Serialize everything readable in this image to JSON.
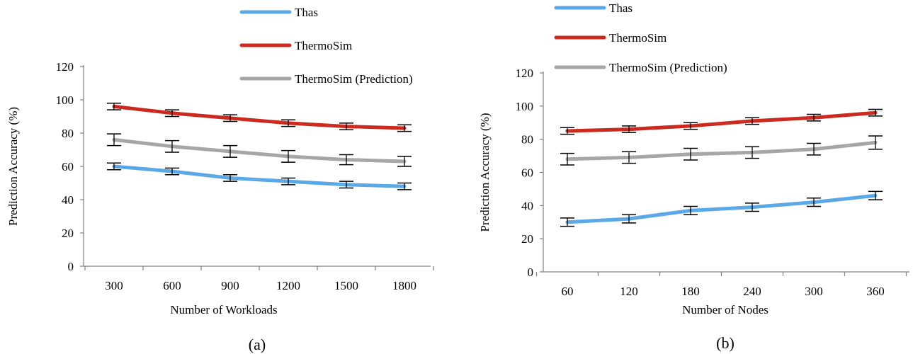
{
  "chart_data": [
    {
      "type": "line",
      "title": "",
      "panel_label": "(a)",
      "xlabel": "Number of Workloads",
      "ylabel": "Prediction Accuracy (%)",
      "categories": [
        "300",
        "600",
        "900",
        "1200",
        "1500",
        "1800"
      ],
      "ylim": [
        0,
        120
      ],
      "yticks": [
        "0",
        "20",
        "40",
        "60",
        "80",
        "100",
        "120"
      ],
      "grid": false,
      "legend_position": "top-right",
      "series": [
        {
          "name": "Thas",
          "color": "#5aa8e6",
          "values": [
            60,
            57,
            53,
            51,
            49,
            48
          ],
          "errors": [
            2,
            2,
            2,
            2,
            2,
            2
          ]
        },
        {
          "name": "ThermoSim",
          "color": "#cc2a1e",
          "values": [
            96,
            92,
            89,
            86,
            84,
            83
          ],
          "errors": [
            2,
            2,
            2,
            2,
            2,
            2
          ]
        },
        {
          "name": "ThermoSim (Prediction)",
          "color": "#a6a6a6",
          "values": [
            76,
            72,
            69,
            66,
            64,
            63
          ],
          "errors": [
            3.5,
            3.5,
            3.5,
            3.5,
            3,
            3
          ]
        }
      ]
    },
    {
      "type": "line",
      "title": "",
      "panel_label": "(b)",
      "xlabel": "Number of Nodes",
      "ylabel": "Prediction Accuracy (%)",
      "categories": [
        "60",
        "120",
        "180",
        "240",
        "300",
        "360"
      ],
      "ylim": [
        0,
        120
      ],
      "yticks": [
        "0",
        "20",
        "40",
        "60",
        "80",
        "100",
        "120"
      ],
      "grid": false,
      "legend_position": "top-right",
      "series": [
        {
          "name": "Thas",
          "color": "#5aa8e6",
          "values": [
            30,
            32,
            37,
            39,
            42,
            46
          ],
          "errors": [
            2.5,
            2.5,
            2.5,
            2.5,
            2.5,
            2.5
          ]
        },
        {
          "name": "ThermoSim",
          "color": "#cc2a1e",
          "values": [
            85,
            86,
            88,
            91,
            93,
            96
          ],
          "errors": [
            2,
            2,
            2,
            2,
            2,
            2
          ]
        },
        {
          "name": "ThermoSim (Prediction)",
          "color": "#a6a6a6",
          "values": [
            68,
            69,
            71,
            72,
            74,
            78
          ],
          "errors": [
            3.5,
            3.5,
            3.5,
            3.5,
            3.5,
            4
          ]
        }
      ]
    }
  ]
}
